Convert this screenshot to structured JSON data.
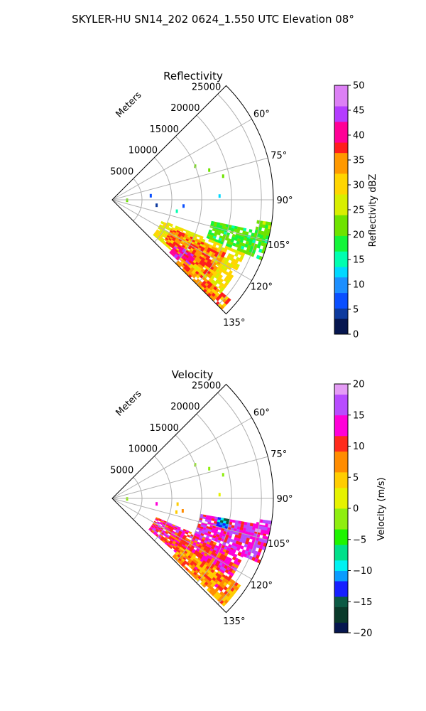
{
  "figure": {
    "suptitle": "SKYLER-HU  SN14_202  0624_1.550 UTC Elevation 08°"
  },
  "chart_data": [
    {
      "type": "heatmap",
      "projection": "polar-sector",
      "title": "Reflectivity",
      "radial_label": "Meters",
      "radial_ticks": [
        5000,
        10000,
        15000,
        20000,
        25000
      ],
      "radial_tick_labels": [
        "5000",
        "10000",
        "15000",
        "20000",
        "25000"
      ],
      "radial_max": 27000,
      "azimuth_range_deg": [
        45,
        135
      ],
      "azimuth_ticks": [
        60,
        75,
        90,
        105,
        120,
        135
      ],
      "azimuth_tick_labels": [
        "60°",
        "75°",
        "90°",
        "105°",
        "120°",
        "135°"
      ],
      "grid": true,
      "colorbar": {
        "label": "Reflectivity dBZ",
        "range": [
          0,
          50
        ],
        "ticks": [
          0,
          5,
          10,
          15,
          20,
          25,
          30,
          35,
          40,
          45,
          50
        ],
        "tick_labels": [
          "0",
          "5",
          "10",
          "15",
          "20",
          "25",
          "30",
          "35",
          "40",
          "45",
          "50"
        ]
      },
      "echo_regions": [
        {
          "az": [
            102,
            112
          ],
          "r": [
            17000,
            27000
          ],
          "value": 20
        },
        {
          "az": [
            112,
            130
          ],
          "r": [
            9000,
            24000
          ],
          "value": 28
        },
        {
          "az": [
            115,
            128
          ],
          "r": [
            11000,
            21000
          ],
          "value": 35
        },
        {
          "az": [
            124,
            132
          ],
          "r": [
            13000,
            17000
          ],
          "value": 41
        },
        {
          "az": [
            98,
            104
          ],
          "r": [
            24500,
            26800
          ],
          "value": 21
        },
        {
          "az": [
            130,
            135
          ],
          "r": [
            15000,
            26000
          ],
          "value": 34
        }
      ],
      "echo_spots": [
        {
          "az": 68,
          "r": 15000,
          "value": 21
        },
        {
          "az": 73,
          "r": 17000,
          "value": 22
        },
        {
          "az": 78,
          "r": 19000,
          "value": 21
        },
        {
          "az": 84,
          "r": 6500,
          "value": 5
        },
        {
          "az": 97,
          "r": 7500,
          "value": 3
        },
        {
          "az": 95,
          "r": 12000,
          "value": 7
        },
        {
          "az": 100,
          "r": 11000,
          "value": 14
        },
        {
          "az": 88,
          "r": 18000,
          "value": 12
        },
        {
          "az": 92,
          "r": 2500,
          "value": 22
        }
      ]
    },
    {
      "type": "heatmap",
      "projection": "polar-sector",
      "title": "Velocity",
      "radial_label": "Meters",
      "radial_ticks": [
        5000,
        10000,
        15000,
        20000,
        25000
      ],
      "radial_tick_labels": [
        "5000",
        "10000",
        "15000",
        "20000",
        "25000"
      ],
      "radial_max": 27000,
      "azimuth_range_deg": [
        45,
        135
      ],
      "azimuth_ticks": [
        60,
        75,
        90,
        105,
        120,
        135
      ],
      "azimuth_tick_labels": [
        "60°",
        "75°",
        "90°",
        "105°",
        "120°",
        "135°"
      ],
      "grid": true,
      "colorbar": {
        "label": "Velocity (m/s)",
        "range": [
          -20,
          20
        ],
        "ticks": [
          -20,
          -15,
          -10,
          -5,
          0,
          5,
          10,
          15,
          20
        ],
        "tick_labels": [
          "−20",
          "−15",
          "−10",
          "−5",
          "0",
          "5",
          "10",
          "15",
          "20"
        ]
      },
      "echo_regions": [
        {
          "az": [
            100,
            113
          ],
          "r": [
            15000,
            27000
          ],
          "value": 14
        },
        {
          "az": [
            113,
            130
          ],
          "r": [
            8000,
            24000
          ],
          "value": 12
        },
        {
          "az": [
            118,
            128
          ],
          "r": [
            12000,
            21000
          ],
          "value": 10
        },
        {
          "az": [
            124,
            133
          ],
          "r": [
            14000,
            26000
          ],
          "value": 7
        },
        {
          "az": [
            100,
            104
          ],
          "r": [
            18000,
            20000
          ],
          "value": -12
        },
        {
          "az": [
            98,
            103
          ],
          "r": [
            24500,
            26800
          ],
          "value": 15
        }
      ],
      "echo_spots": [
        {
          "az": 68,
          "r": 15000,
          "value": -3
        },
        {
          "az": 73,
          "r": 17000,
          "value": -3
        },
        {
          "az": 78,
          "r": 19000,
          "value": -2
        },
        {
          "az": 92,
          "r": 2500,
          "value": -3
        },
        {
          "az": 97,
          "r": 7500,
          "value": 12
        },
        {
          "az": 95,
          "r": 11000,
          "value": 3
        },
        {
          "az": 100,
          "r": 12000,
          "value": 6
        },
        {
          "az": 102,
          "r": 11000,
          "value": 4
        },
        {
          "az": 88,
          "r": 18000,
          "value": 1
        }
      ]
    }
  ]
}
